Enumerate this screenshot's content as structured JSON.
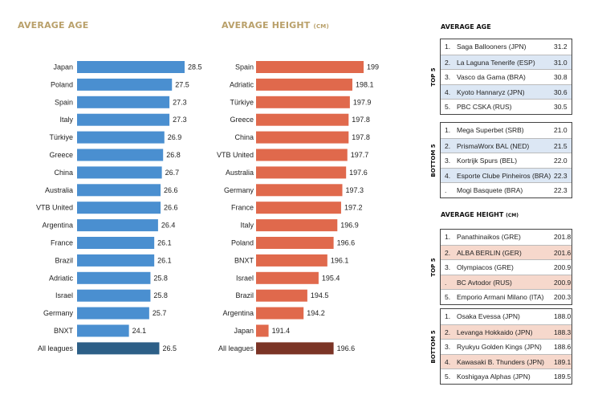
{
  "chart_data": [
    {
      "type": "bar",
      "orientation": "horizontal",
      "title": "AVERAGE AGE",
      "categories": [
        "Japan",
        "Poland",
        "Spain",
        "Italy",
        "Türkiye",
        "Greece",
        "China",
        "Australia",
        "VTB United",
        "Argentina",
        "France",
        "Brazil",
        "Adriatic",
        "Israel",
        "Germany",
        "BNXT",
        "All leagues"
      ],
      "values": [
        28.5,
        27.5,
        27.3,
        27.3,
        26.9,
        26.8,
        26.7,
        26.6,
        26.6,
        26.4,
        26.1,
        26.1,
        25.8,
        25.8,
        25.7,
        24.1,
        26.5
      ],
      "value_labels": [
        "28.5",
        "27.5",
        "27.3",
        "27.3",
        "26.9",
        "26.8",
        "26.7",
        "26.6",
        "26.6",
        "26.4",
        "26.1",
        "26.1",
        "25.8",
        "25.8",
        "25.7",
        "24.1",
        "26.5"
      ],
      "xlim": [
        20,
        28.5
      ],
      "color": "#4a8fd0",
      "highlight_color": "#2d5f87",
      "highlight_category": "All leagues"
    },
    {
      "type": "bar",
      "orientation": "horizontal",
      "title": "AVERAGE HEIGHT",
      "title_unit": "(CM)",
      "categories": [
        "Spain",
        "Adriatic",
        "Türkiye",
        "Greece",
        "China",
        "VTB United",
        "Australia",
        "Germany",
        "France",
        "Italy",
        "Poland",
        "BNXT",
        "Israel",
        "Brazil",
        "Argentina",
        "Japan",
        "All leagues"
      ],
      "values": [
        199,
        198.1,
        197.9,
        197.8,
        197.8,
        197.7,
        197.6,
        197.3,
        197.2,
        196.9,
        196.6,
        196.1,
        195.4,
        194.5,
        194.2,
        191.4,
        196.6
      ],
      "value_labels": [
        "199",
        "198.1",
        "197.9",
        "197.8",
        "197.8",
        "197.7",
        "197.6",
        "197.3",
        "197.2",
        "196.9",
        "196.6",
        "196.1",
        "195.4",
        "194.5",
        "194.2",
        "191.4",
        "196.6"
      ],
      "xlim": [
        190.4,
        199
      ],
      "color": "#e0694c",
      "highlight_color": "#7b3426",
      "highlight_category": "All leagues"
    }
  ],
  "right": {
    "age_title": "AVERAGE AGE",
    "age_top_label": "TOP 5",
    "age_top": [
      {
        "rank": "1.",
        "name": "Saga Ballooners (JPN)",
        "value": "31.2"
      },
      {
        "rank": "2.",
        "name": "La Laguna Tenerife (ESP)",
        "value": "31.0"
      },
      {
        "rank": "3.",
        "name": "Vasco da Gama (BRA)",
        "value": "30.8"
      },
      {
        "rank": "4.",
        "name": "Kyoto Hannaryz (JPN)",
        "value": "30.6"
      },
      {
        "rank": "5.",
        "name": "PBC CSKA (RUS)",
        "value": "30.5"
      }
    ],
    "age_bottom_label": "BOTTOM 5",
    "age_bottom": [
      {
        "rank": "1.",
        "name": "Mega Superbet (SRB)",
        "value": "21.0"
      },
      {
        "rank": "2.",
        "name": "PrismaWorx BAL (NED)",
        "value": "21.5"
      },
      {
        "rank": "3.",
        "name": "Kortrijk Spurs (BEL)",
        "value": "22.0"
      },
      {
        "rank": "4.",
        "name": "Esporte Clube Pinheiros (BRA)",
        "value": "22.3"
      },
      {
        "rank": ".",
        "name": "Mogi Basquete (BRA)",
        "value": "22.3"
      }
    ],
    "height_title": "AVERAGE HEIGHT",
    "height_unit": "(CM)",
    "height_top_label": "TOP 5",
    "height_top": [
      {
        "rank": "1.",
        "name": "Panathinaikos (GRE)",
        "value": "201.8"
      },
      {
        "rank": "2.",
        "name": "ALBA BERLIN (GER)",
        "value": "201.6"
      },
      {
        "rank": "3.",
        "name": "Olympiacos (GRE)",
        "value": "200.9"
      },
      {
        "rank": ".",
        "name": "BC Avtodor (RUS)",
        "value": "200.9"
      },
      {
        "rank": "5.",
        "name": "Emporio Armani Milano (ITA)",
        "value": "200.3"
      }
    ],
    "height_bottom_label": "BOTTOM 5",
    "height_bottom": [
      {
        "rank": "1.",
        "name": "Osaka Evessa (JPN)",
        "value": "188.0"
      },
      {
        "rank": "2.",
        "name": "Levanga Hokkaido (JPN)",
        "value": "188.3"
      },
      {
        "rank": "3.",
        "name": "Ryukyu Golden Kings (JPN)",
        "value": "188.6"
      },
      {
        "rank": "4.",
        "name": "Kawasaki B. Thunders (JPN)",
        "value": "189.1"
      },
      {
        "rank": "5.",
        "name": "Koshigaya Alphas (JPN)",
        "value": "189.5"
      }
    ]
  }
}
